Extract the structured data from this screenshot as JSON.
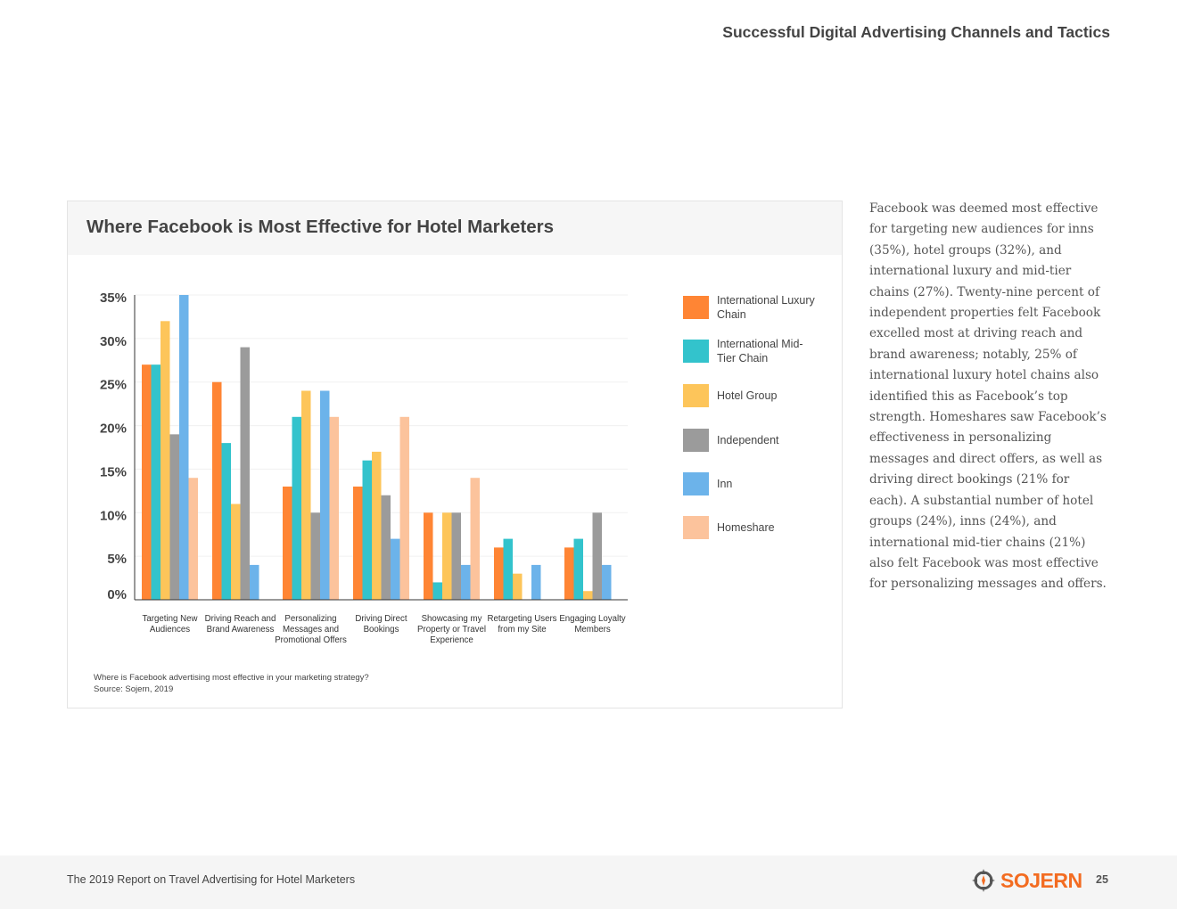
{
  "header": {
    "title": "Successful Digital Advertising Channels and Tactics"
  },
  "chart_data": {
    "type": "bar",
    "title": "Where Facebook is Most Effective for Hotel Marketers",
    "categories": [
      "Targeting New Audiences",
      "Driving Reach and Brand Awareness",
      "Personalizing Messages and Promotional Offers",
      "Driving Direct Bookings",
      "Showcasing my Property or Travel Experience",
      "Retargeting Users from my Site",
      "Engaging Loyalty Members"
    ],
    "series": [
      {
        "name": "International Luxury Chain",
        "color": "#ff8534",
        "values": [
          27,
          25,
          13,
          13,
          10,
          6,
          6
        ]
      },
      {
        "name": "International Mid-Tier Chain",
        "color": "#33c3cc",
        "values": [
          27,
          18,
          21,
          16,
          2,
          7,
          7
        ]
      },
      {
        "name": "Hotel Group",
        "color": "#fdc55a",
        "values": [
          32,
          11,
          24,
          17,
          10,
          3,
          1
        ]
      },
      {
        "name": "Independent",
        "color": "#9b9b9b",
        "values": [
          19,
          29,
          10,
          12,
          10,
          0,
          10
        ]
      },
      {
        "name": "Inn",
        "color": "#6cb3ea",
        "values": [
          35,
          4,
          24,
          7,
          4,
          4,
          4
        ]
      },
      {
        "name": "Homeshare",
        "color": "#fcc39c",
        "values": [
          14,
          0,
          21,
          21,
          14,
          0,
          0
        ]
      }
    ],
    "ylim": [
      0,
      35
    ],
    "yticks": [
      {
        "value": 0,
        "label": "0%"
      },
      {
        "value": 5,
        "label": "5%"
      },
      {
        "value": 10,
        "label": "10%"
      },
      {
        "value": 15,
        "label": "15%"
      },
      {
        "value": 20,
        "label": "20%"
      },
      {
        "value": 25,
        "label": "25%"
      },
      {
        "value": 30,
        "label": "30%"
      },
      {
        "value": 35,
        "label": "35%"
      }
    ],
    "grid": true,
    "legend": "right",
    "question": "Where is Facebook advertising most effective in your marketing strategy?",
    "source": "Source: Sojern, 2019"
  },
  "body": {
    "text": "Facebook was deemed most effective for targeting new audiences for inns (35%), hotel groups (32%), and international luxury and mid-tier chains (27%). Twenty-nine percent of independent properties felt Facebook excelled most at driving reach and brand awareness; notably, 25% of international luxury hotel chains also identified this as Facebook’s top strength. Homeshares saw Facebook’s effectiveness in personalizing messages and direct offers, as well as driving direct bookings (21% for each). A substantial number of hotel groups (24%), inns (24%), and international mid-tier chains (21%) also felt Facebook was most effective for personalizing messages and offers."
  },
  "footer": {
    "report": "The 2019 Report on Travel Advertising for Hotel Marketers",
    "brand": "SOJERN",
    "page": "25"
  }
}
